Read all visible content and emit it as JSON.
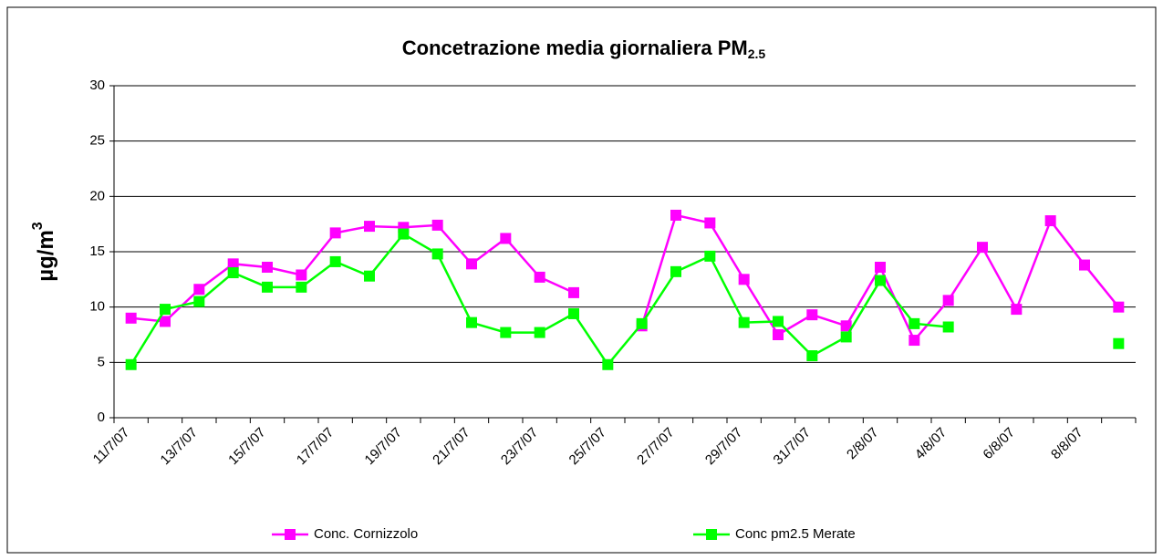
{
  "chart_data": {
    "type": "line",
    "title": "Concetrazione media giornaliera PM",
    "title_subscript": "2.5",
    "y_label": "µg/m",
    "y_label_superscript": "3",
    "categories": [
      "11/7/07",
      null,
      "13/7/07",
      null,
      "15/7/07",
      null,
      "17/7/07",
      null,
      "19/7/07",
      null,
      "21/7/07",
      null,
      "23/7/07",
      null,
      "25/7/07",
      null,
      "27/7/07",
      null,
      "29/7/07",
      null,
      "31/7/07",
      null,
      "2/8/07",
      null,
      "4/8/07",
      null,
      "6/8/07",
      null,
      "8/8/07",
      null
    ],
    "series": [
      {
        "name": "Conc. Cornizzolo",
        "color": "#ff00ff",
        "values": [
          9.0,
          8.7,
          11.6,
          13.9,
          13.6,
          12.9,
          16.7,
          17.3,
          17.2,
          17.4,
          13.9,
          16.2,
          12.7,
          11.3,
          null,
          8.3,
          18.3,
          17.6,
          12.5,
          7.5,
          9.3,
          8.3,
          13.6,
          7.0,
          10.6,
          15.4,
          9.8,
          17.8,
          13.8,
          10.0
        ]
      },
      {
        "name": "Conc pm2.5 Merate",
        "color": "#00ff00",
        "values": [
          4.8,
          9.8,
          10.5,
          13.1,
          11.8,
          11.8,
          14.1,
          12.8,
          16.6,
          14.8,
          8.6,
          7.7,
          7.7,
          9.4,
          4.8,
          8.5,
          13.2,
          14.6,
          8.6,
          8.7,
          5.6,
          7.3,
          12.4,
          8.5,
          8.2,
          null,
          null,
          null,
          null,
          6.7
        ]
      }
    ],
    "ylim": [
      0,
      30
    ],
    "yticks": [
      0,
      5,
      10,
      15,
      20,
      25,
      30
    ],
    "grid": true,
    "legend": "bottom"
  }
}
